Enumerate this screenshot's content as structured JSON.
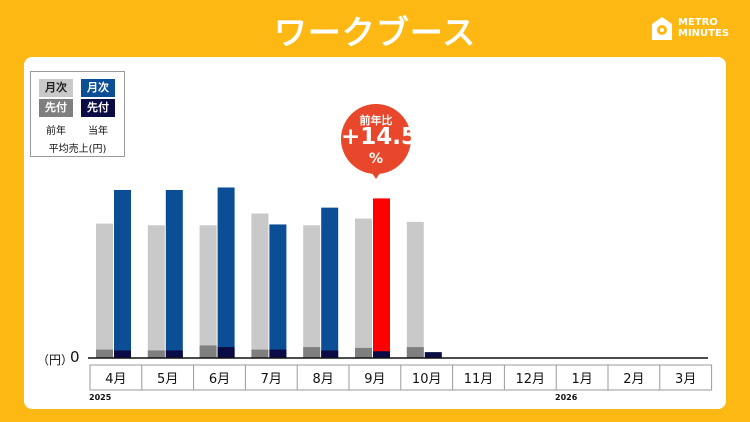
{
  "header": {
    "title": "ワークブース"
  },
  "logo": {
    "icon": "map-pin-icon",
    "line1": "METRO",
    "line2": "MINUTES"
  },
  "legend": {
    "monthly_label": "月次",
    "advance_label": "先付",
    "prev_year": "前年",
    "curr_year": "当年",
    "note": "平均売上(円)"
  },
  "callout": {
    "label": "前年比",
    "value": "+14.5",
    "unit": "%"
  },
  "axis": {
    "unit": "（円）",
    "zero": "0",
    "year_start": "2025",
    "year_next": "2026"
  },
  "colors": {
    "prev_total": "#C9C9C9",
    "prev_advance": "#7F7F7F",
    "curr_total": "#0B4E95",
    "curr_advance": "#0B0B45",
    "highlight": "#FF0000",
    "background": "#FDB813"
  },
  "chart_data": {
    "type": "bar",
    "categories": [
      "4月",
      "5月",
      "6月",
      "7月",
      "8月",
      "9月",
      "10月",
      "11月",
      "12月",
      "1月",
      "2月",
      "3月"
    ],
    "ylim": [
      0,
      100
    ],
    "highlight_index": 5,
    "series": [
      {
        "name": "前年 月次",
        "values": [
          80,
          79,
          79,
          86,
          79,
          83,
          81,
          null,
          null,
          null,
          null,
          null
        ]
      },
      {
        "name": "前年 先付",
        "values": [
          5,
          4.5,
          7.5,
          5,
          6.5,
          6,
          6.5,
          null,
          null,
          null,
          null,
          null
        ]
      },
      {
        "name": "当年 月次",
        "values": [
          100,
          100,
          101.5,
          79.5,
          89.5,
          95,
          null,
          null,
          null,
          null,
          null,
          null
        ]
      },
      {
        "name": "当年 先付",
        "values": [
          4.5,
          4.5,
          6.5,
          5,
          4.5,
          4,
          3.5,
          null,
          null,
          null,
          null,
          null
        ]
      }
    ]
  }
}
